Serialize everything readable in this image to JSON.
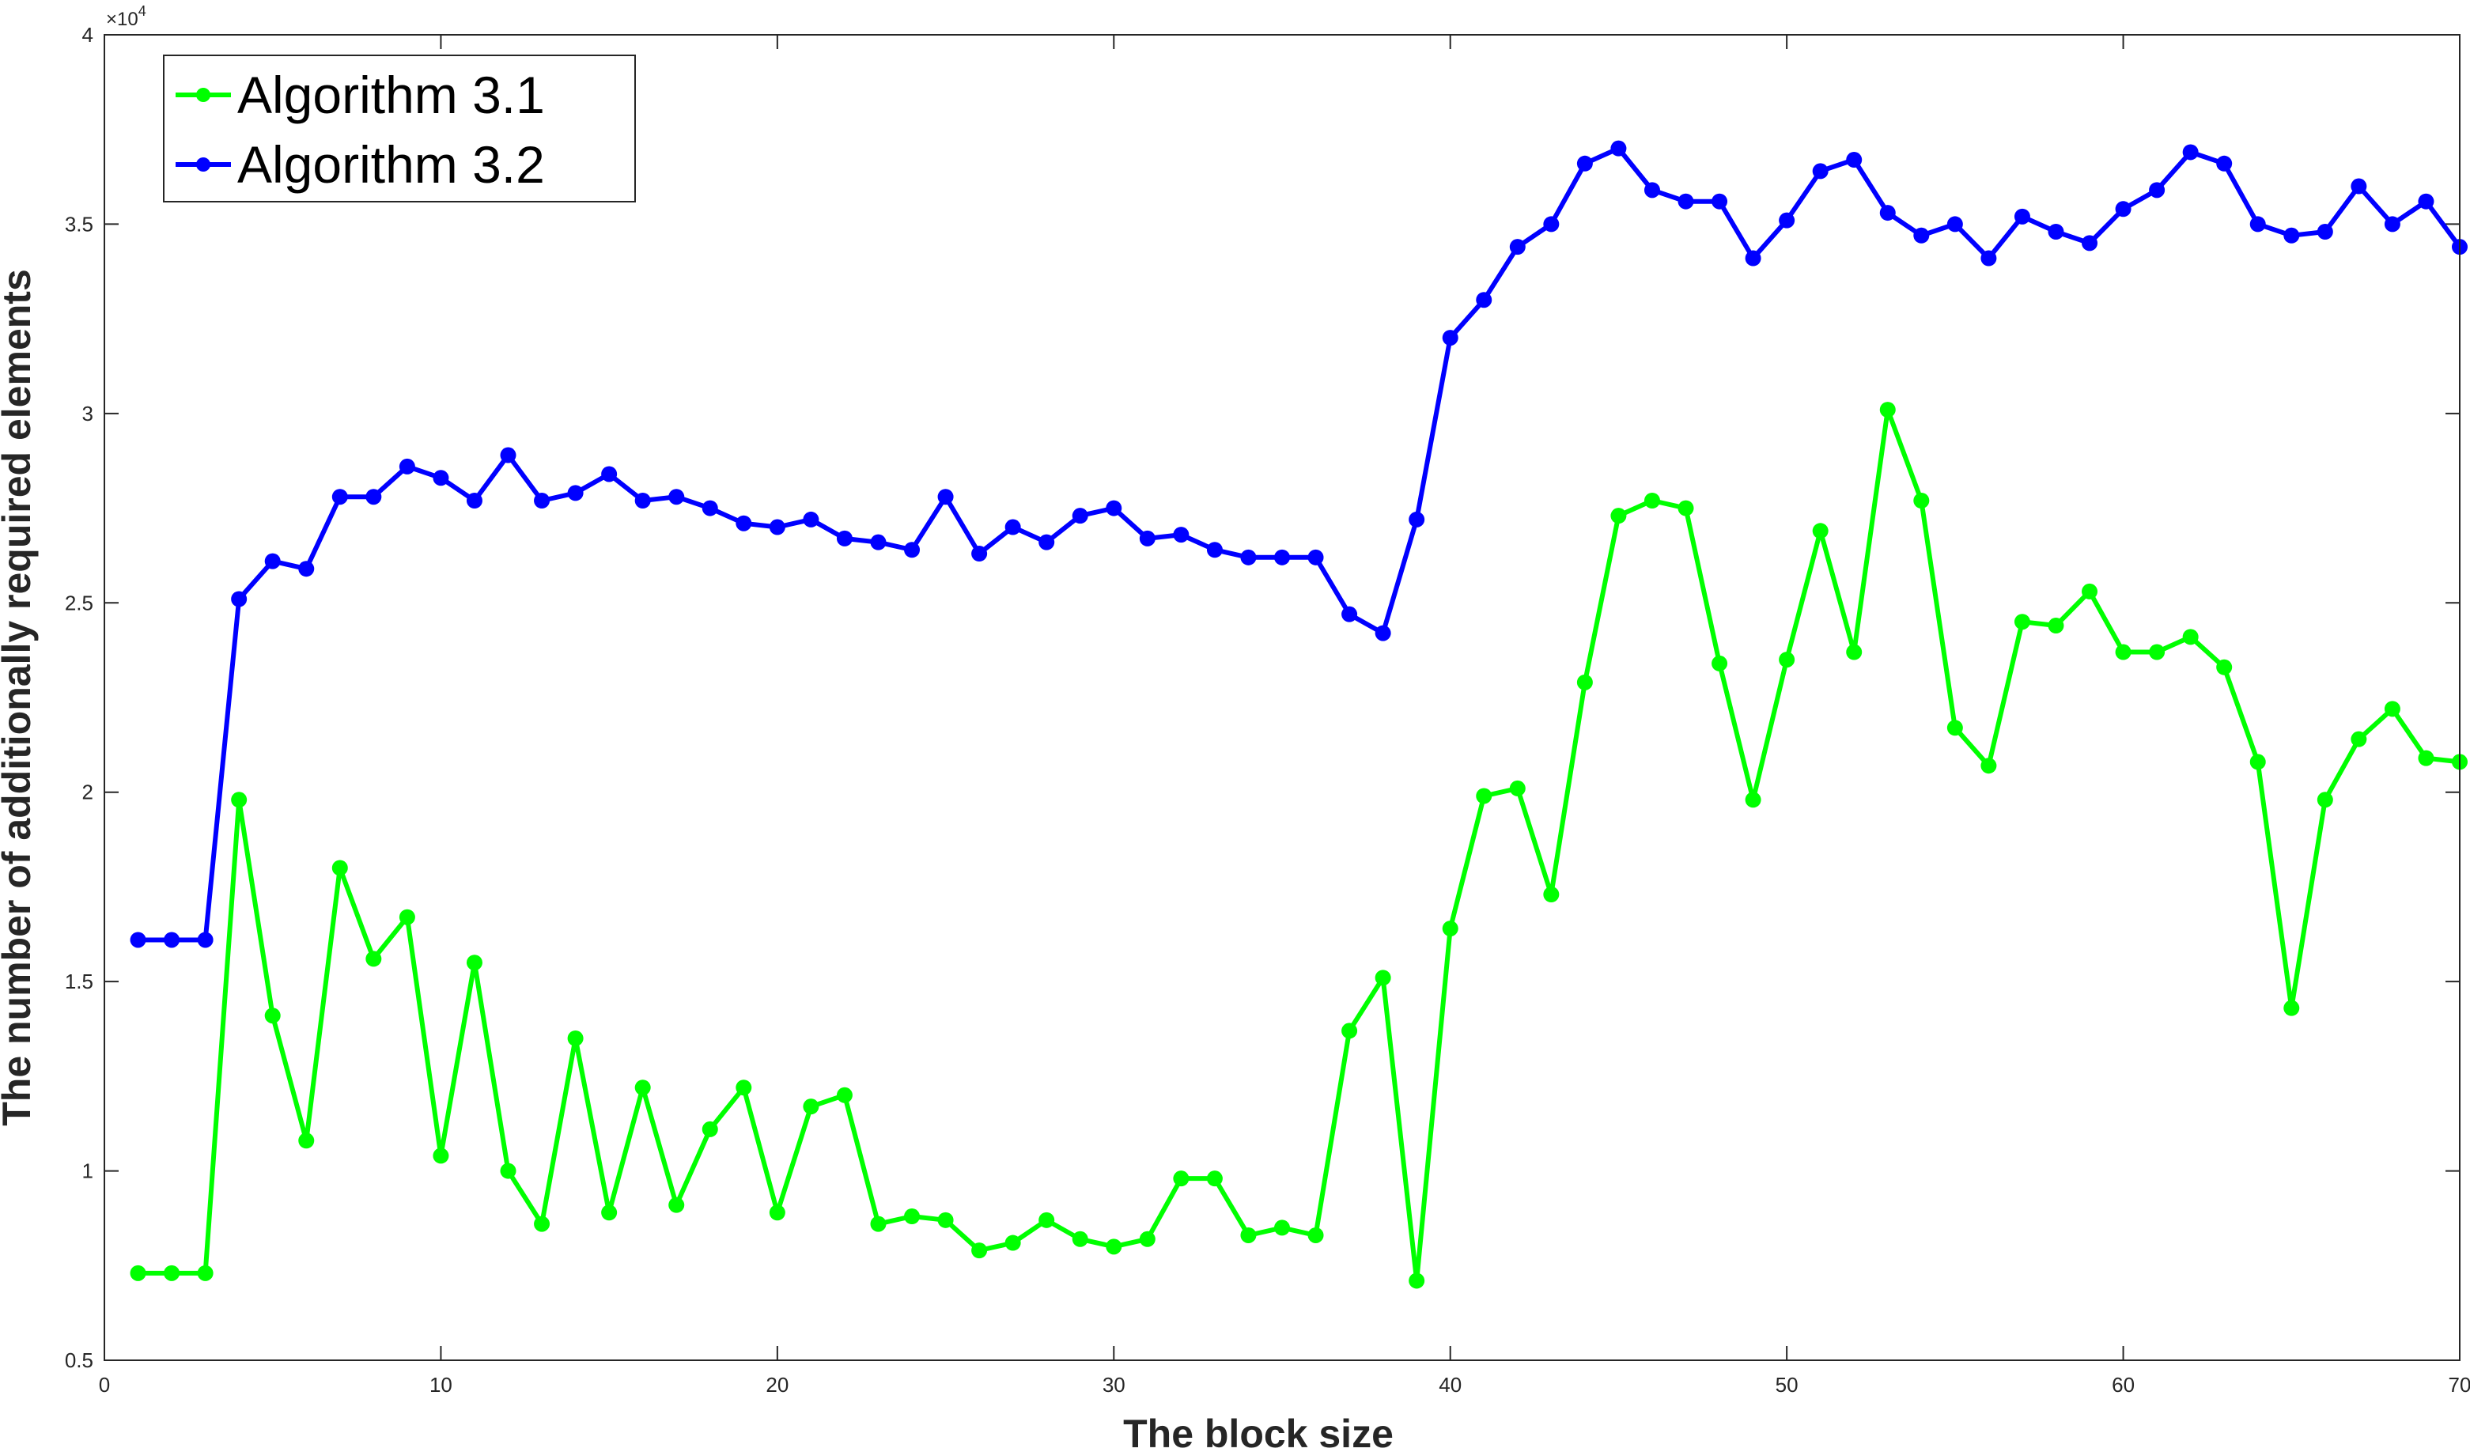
{
  "chart_data": {
    "type": "line",
    "title": "",
    "xlabel": "The block size",
    "ylabel": "The number of additionally required elements",
    "xlim": [
      0,
      70
    ],
    "ylim": [
      0.5,
      4
    ],
    "y_multiplier": "×10",
    "y_multiplier_exp": "4",
    "xticks": [
      "0",
      "10",
      "20",
      "30",
      "40",
      "50",
      "60",
      "70"
    ],
    "yticks": [
      "0.5",
      "1",
      "1.5",
      "2",
      "2.5",
      "3",
      "3.5",
      "4"
    ],
    "legend_position": "top-left",
    "x": [
      1,
      2,
      3,
      4,
      5,
      6,
      7,
      8,
      9,
      10,
      11,
      12,
      13,
      14,
      15,
      16,
      17,
      18,
      19,
      20,
      21,
      22,
      23,
      24,
      25,
      26,
      27,
      28,
      29,
      30,
      31,
      32,
      33,
      34,
      35,
      36,
      37,
      38,
      39,
      40,
      41,
      42,
      43,
      44,
      45,
      46,
      47,
      48,
      49,
      50,
      51,
      52,
      53,
      54,
      55,
      56,
      57,
      58,
      59,
      60,
      61,
      62,
      63,
      64,
      65,
      66,
      67,
      68,
      69,
      70
    ],
    "series": [
      {
        "name": "Algorithm 3.1",
        "color": "#00ff00",
        "values": [
          0.73,
          0.73,
          0.73,
          1.98,
          1.41,
          1.08,
          1.8,
          1.56,
          1.67,
          1.04,
          1.55,
          1.0,
          0.86,
          1.35,
          0.89,
          1.22,
          0.91,
          1.11,
          1.22,
          0.89,
          1.17,
          1.2,
          0.86,
          0.88,
          0.87,
          0.79,
          0.81,
          0.87,
          0.82,
          0.8,
          0.82,
          0.98,
          0.98,
          0.83,
          0.85,
          0.83,
          1.37,
          1.51,
          0.71,
          1.64,
          1.99,
          2.01,
          1.73,
          2.29,
          2.73,
          2.77,
          2.75,
          2.34,
          1.98,
          2.35,
          2.69,
          2.37,
          3.01,
          2.77,
          2.17,
          2.07,
          2.45,
          2.44,
          2.53,
          2.37,
          2.37,
          2.41,
          2.33,
          2.08,
          1.43,
          1.98,
          2.14,
          2.22,
          2.09,
          2.08
        ]
      },
      {
        "name": "Algorithm 3.2",
        "color": "#0000ff",
        "values": [
          1.61,
          1.61,
          1.61,
          2.51,
          2.61,
          2.59,
          2.78,
          2.78,
          2.86,
          2.83,
          2.77,
          2.89,
          2.77,
          2.79,
          2.84,
          2.77,
          2.78,
          2.75,
          2.71,
          2.7,
          2.72,
          2.67,
          2.66,
          2.64,
          2.78,
          2.63,
          2.7,
          2.66,
          2.73,
          2.75,
          2.67,
          2.68,
          2.64,
          2.62,
          2.62,
          2.62,
          2.47,
          2.42,
          2.72,
          3.2,
          3.3,
          3.44,
          3.5,
          3.66,
          3.7,
          3.59,
          3.56,
          3.56,
          3.41,
          3.51,
          3.64,
          3.67,
          3.53,
          3.47,
          3.5,
          3.41,
          3.52,
          3.48,
          3.45,
          3.54,
          3.59,
          3.69,
          3.66,
          3.5,
          3.47,
          3.48,
          3.6,
          3.5,
          3.56,
          3.44
        ]
      }
    ]
  }
}
